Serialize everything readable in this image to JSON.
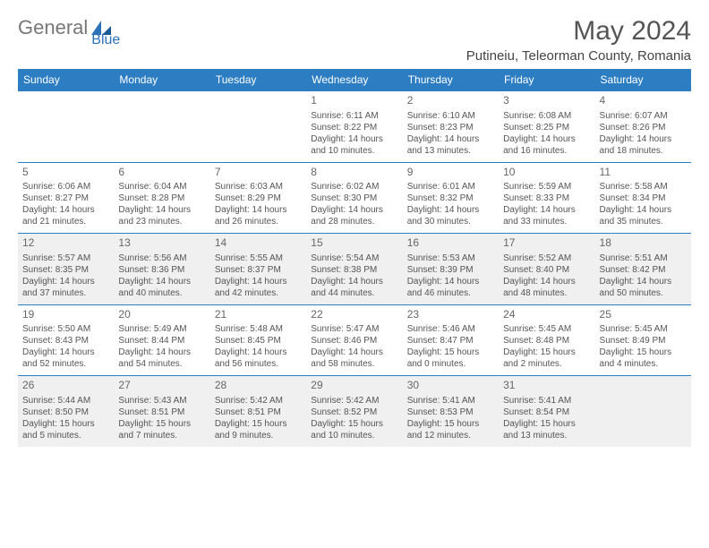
{
  "logo": {
    "part1": "General",
    "part2": "Blue"
  },
  "title": "May 2024",
  "location": "Putineiu, Teleorman County, Romania",
  "dow": [
    "Sunday",
    "Monday",
    "Tuesday",
    "Wednesday",
    "Thursday",
    "Friday",
    "Saturday"
  ],
  "colors": {
    "header_bg": "#2d7dc3",
    "header_fg": "#ffffff",
    "row_border": "#2d7dc3",
    "shaded_bg": "#f0f0f0",
    "text": "#555555",
    "logo_gray": "#777777",
    "logo_blue": "#2d72b8"
  },
  "weeks": [
    [
      {
        "day": "",
        "sunrise": "",
        "sunset": "",
        "daylight": "",
        "shaded": false
      },
      {
        "day": "",
        "sunrise": "",
        "sunset": "",
        "daylight": "",
        "shaded": false
      },
      {
        "day": "",
        "sunrise": "",
        "sunset": "",
        "daylight": "",
        "shaded": false
      },
      {
        "day": "1",
        "sunrise": "Sunrise: 6:11 AM",
        "sunset": "Sunset: 8:22 PM",
        "daylight": "Daylight: 14 hours and 10 minutes.",
        "shaded": false
      },
      {
        "day": "2",
        "sunrise": "Sunrise: 6:10 AM",
        "sunset": "Sunset: 8:23 PM",
        "daylight": "Daylight: 14 hours and 13 minutes.",
        "shaded": false
      },
      {
        "day": "3",
        "sunrise": "Sunrise: 6:08 AM",
        "sunset": "Sunset: 8:25 PM",
        "daylight": "Daylight: 14 hours and 16 minutes.",
        "shaded": false
      },
      {
        "day": "4",
        "sunrise": "Sunrise: 6:07 AM",
        "sunset": "Sunset: 8:26 PM",
        "daylight": "Daylight: 14 hours and 18 minutes.",
        "shaded": false
      }
    ],
    [
      {
        "day": "5",
        "sunrise": "Sunrise: 6:06 AM",
        "sunset": "Sunset: 8:27 PM",
        "daylight": "Daylight: 14 hours and 21 minutes.",
        "shaded": false
      },
      {
        "day": "6",
        "sunrise": "Sunrise: 6:04 AM",
        "sunset": "Sunset: 8:28 PM",
        "daylight": "Daylight: 14 hours and 23 minutes.",
        "shaded": false
      },
      {
        "day": "7",
        "sunrise": "Sunrise: 6:03 AM",
        "sunset": "Sunset: 8:29 PM",
        "daylight": "Daylight: 14 hours and 26 minutes.",
        "shaded": false
      },
      {
        "day": "8",
        "sunrise": "Sunrise: 6:02 AM",
        "sunset": "Sunset: 8:30 PM",
        "daylight": "Daylight: 14 hours and 28 minutes.",
        "shaded": false
      },
      {
        "day": "9",
        "sunrise": "Sunrise: 6:01 AM",
        "sunset": "Sunset: 8:32 PM",
        "daylight": "Daylight: 14 hours and 30 minutes.",
        "shaded": false
      },
      {
        "day": "10",
        "sunrise": "Sunrise: 5:59 AM",
        "sunset": "Sunset: 8:33 PM",
        "daylight": "Daylight: 14 hours and 33 minutes.",
        "shaded": false
      },
      {
        "day": "11",
        "sunrise": "Sunrise: 5:58 AM",
        "sunset": "Sunset: 8:34 PM",
        "daylight": "Daylight: 14 hours and 35 minutes.",
        "shaded": false
      }
    ],
    [
      {
        "day": "12",
        "sunrise": "Sunrise: 5:57 AM",
        "sunset": "Sunset: 8:35 PM",
        "daylight": "Daylight: 14 hours and 37 minutes.",
        "shaded": true
      },
      {
        "day": "13",
        "sunrise": "Sunrise: 5:56 AM",
        "sunset": "Sunset: 8:36 PM",
        "daylight": "Daylight: 14 hours and 40 minutes.",
        "shaded": true
      },
      {
        "day": "14",
        "sunrise": "Sunrise: 5:55 AM",
        "sunset": "Sunset: 8:37 PM",
        "daylight": "Daylight: 14 hours and 42 minutes.",
        "shaded": true
      },
      {
        "day": "15",
        "sunrise": "Sunrise: 5:54 AM",
        "sunset": "Sunset: 8:38 PM",
        "daylight": "Daylight: 14 hours and 44 minutes.",
        "shaded": true
      },
      {
        "day": "16",
        "sunrise": "Sunrise: 5:53 AM",
        "sunset": "Sunset: 8:39 PM",
        "daylight": "Daylight: 14 hours and 46 minutes.",
        "shaded": true
      },
      {
        "day": "17",
        "sunrise": "Sunrise: 5:52 AM",
        "sunset": "Sunset: 8:40 PM",
        "daylight": "Daylight: 14 hours and 48 minutes.",
        "shaded": true
      },
      {
        "day": "18",
        "sunrise": "Sunrise: 5:51 AM",
        "sunset": "Sunset: 8:42 PM",
        "daylight": "Daylight: 14 hours and 50 minutes.",
        "shaded": true
      }
    ],
    [
      {
        "day": "19",
        "sunrise": "Sunrise: 5:50 AM",
        "sunset": "Sunset: 8:43 PM",
        "daylight": "Daylight: 14 hours and 52 minutes.",
        "shaded": false
      },
      {
        "day": "20",
        "sunrise": "Sunrise: 5:49 AM",
        "sunset": "Sunset: 8:44 PM",
        "daylight": "Daylight: 14 hours and 54 minutes.",
        "shaded": false
      },
      {
        "day": "21",
        "sunrise": "Sunrise: 5:48 AM",
        "sunset": "Sunset: 8:45 PM",
        "daylight": "Daylight: 14 hours and 56 minutes.",
        "shaded": false
      },
      {
        "day": "22",
        "sunrise": "Sunrise: 5:47 AM",
        "sunset": "Sunset: 8:46 PM",
        "daylight": "Daylight: 14 hours and 58 minutes.",
        "shaded": false
      },
      {
        "day": "23",
        "sunrise": "Sunrise: 5:46 AM",
        "sunset": "Sunset: 8:47 PM",
        "daylight": "Daylight: 15 hours and 0 minutes.",
        "shaded": false
      },
      {
        "day": "24",
        "sunrise": "Sunrise: 5:45 AM",
        "sunset": "Sunset: 8:48 PM",
        "daylight": "Daylight: 15 hours and 2 minutes.",
        "shaded": false
      },
      {
        "day": "25",
        "sunrise": "Sunrise: 5:45 AM",
        "sunset": "Sunset: 8:49 PM",
        "daylight": "Daylight: 15 hours and 4 minutes.",
        "shaded": false
      }
    ],
    [
      {
        "day": "26",
        "sunrise": "Sunrise: 5:44 AM",
        "sunset": "Sunset: 8:50 PM",
        "daylight": "Daylight: 15 hours and 5 minutes.",
        "shaded": true
      },
      {
        "day": "27",
        "sunrise": "Sunrise: 5:43 AM",
        "sunset": "Sunset: 8:51 PM",
        "daylight": "Daylight: 15 hours and 7 minutes.",
        "shaded": true
      },
      {
        "day": "28",
        "sunrise": "Sunrise: 5:42 AM",
        "sunset": "Sunset: 8:51 PM",
        "daylight": "Daylight: 15 hours and 9 minutes.",
        "shaded": true
      },
      {
        "day": "29",
        "sunrise": "Sunrise: 5:42 AM",
        "sunset": "Sunset: 8:52 PM",
        "daylight": "Daylight: 15 hours and 10 minutes.",
        "shaded": true
      },
      {
        "day": "30",
        "sunrise": "Sunrise: 5:41 AM",
        "sunset": "Sunset: 8:53 PM",
        "daylight": "Daylight: 15 hours and 12 minutes.",
        "shaded": true
      },
      {
        "day": "31",
        "sunrise": "Sunrise: 5:41 AM",
        "sunset": "Sunset: 8:54 PM",
        "daylight": "Daylight: 15 hours and 13 minutes.",
        "shaded": true
      },
      {
        "day": "",
        "sunrise": "",
        "sunset": "",
        "daylight": "",
        "shaded": true
      }
    ]
  ]
}
